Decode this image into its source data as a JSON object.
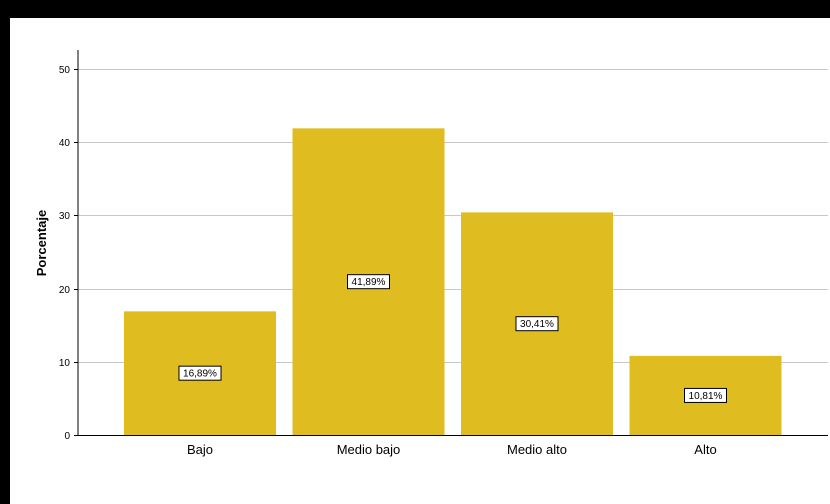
{
  "chart_data": {
    "type": "bar",
    "categories": [
      "Bajo",
      "Medio bajo",
      "Medio alto",
      "Alto"
    ],
    "values": [
      16.89,
      41.89,
      30.41,
      10.81
    ],
    "data_labels": [
      "16,89%",
      "41,89%",
      "30,41%",
      "10,81%"
    ],
    "title": "",
    "xlabel": "",
    "ylabel": "Porcentaje",
    "ylim": [
      0,
      50
    ],
    "yticks": [
      0,
      10,
      20,
      30,
      40,
      50
    ],
    "ytick_labels": [
      "0",
      "10",
      "20",
      "30",
      "40",
      "50"
    ],
    "grid": true,
    "bar_color": "#DFBC1F",
    "grid_color": "#C8C8C8"
  }
}
